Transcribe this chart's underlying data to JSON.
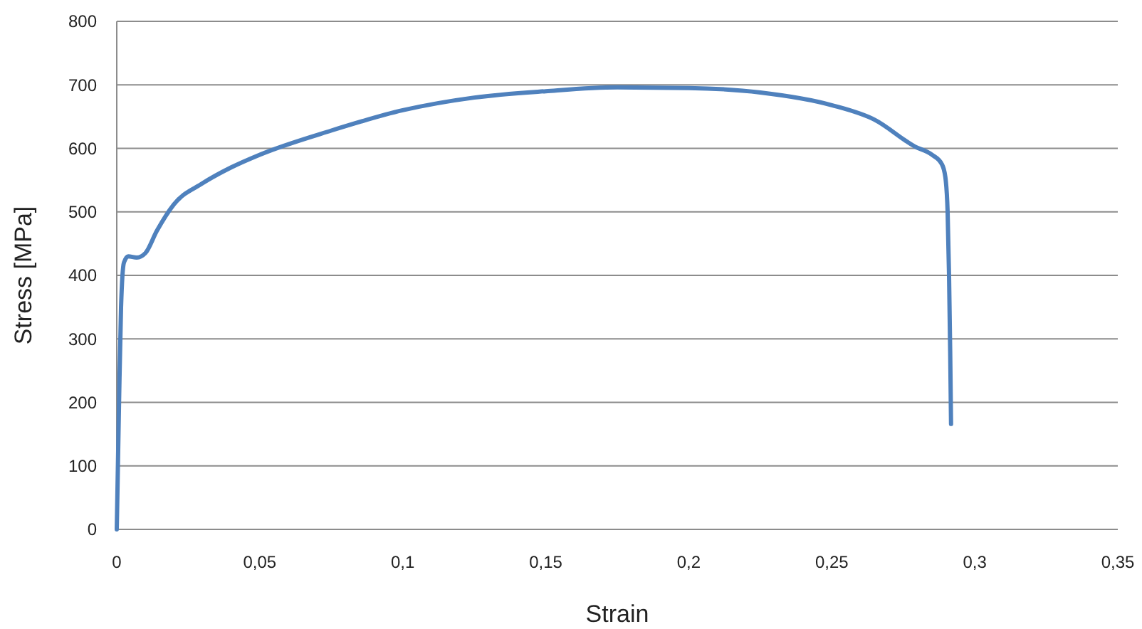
{
  "chart_data": {
    "type": "line",
    "xlabel": "Strain",
    "ylabel": "Stress [MPa]",
    "xlim": [
      0,
      0.35
    ],
    "xticks": [
      {
        "value": 0,
        "label": "0"
      },
      {
        "value": 0.05,
        "label": "0,05"
      },
      {
        "value": 0.1,
        "label": "0,1"
      },
      {
        "value": 0.15,
        "label": "0,15"
      },
      {
        "value": 0.2,
        "label": "0,2"
      },
      {
        "value": 0.25,
        "label": "0,25"
      },
      {
        "value": 0.3,
        "label": "0,3"
      },
      {
        "value": 0.35,
        "label": "0,35"
      }
    ],
    "ylim": [
      0,
      800
    ],
    "yticks": [
      0,
      100,
      200,
      300,
      400,
      500,
      600,
      700,
      800
    ],
    "grid": "y",
    "marker": "none",
    "line_style": "solid",
    "series": [
      {
        "color": "#4f81bd",
        "x": [
          0,
          0.0008,
          0.0015,
          0.0025,
          0.004,
          0.007,
          0.01,
          0.014,
          0.02,
          0.03,
          0.04,
          0.05,
          0.075,
          0.1,
          0.125,
          0.15,
          0.175,
          0.2,
          0.225,
          0.25,
          0.265,
          0.279,
          0.285,
          0.2885,
          0.2897,
          0.2905,
          0.291,
          0.2914,
          0.2917
        ],
        "values": [
          0,
          200,
          350,
          420,
          430,
          428,
          435,
          470,
          512,
          545,
          570,
          590,
          628,
          660,
          680,
          690,
          696,
          695,
          688,
          668,
          645,
          603,
          590,
          575,
          555,
          500,
          400,
          280,
          166
        ]
      }
    ]
  }
}
